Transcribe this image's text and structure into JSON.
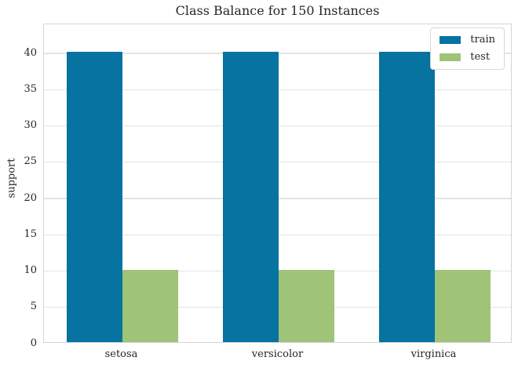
{
  "chart_data": {
    "type": "bar",
    "title": "Class Balance for 150 Instances",
    "categories": [
      "setosa",
      "versicolor",
      "virginica"
    ],
    "series": [
      {
        "name": "train",
        "color": "#0673a1",
        "values": [
          40,
          40,
          40
        ]
      },
      {
        "name": "test",
        "color": "#9fc377",
        "values": [
          10,
          10,
          10
        ]
      }
    ],
    "xlabel": "",
    "ylabel": "support",
    "ylim": [
      0,
      44
    ],
    "yticks": [
      0,
      5,
      10,
      15,
      20,
      25,
      30,
      35,
      40
    ],
    "grid": true,
    "legend": {
      "position": "upper right",
      "entries": [
        "train",
        "test"
      ]
    }
  }
}
